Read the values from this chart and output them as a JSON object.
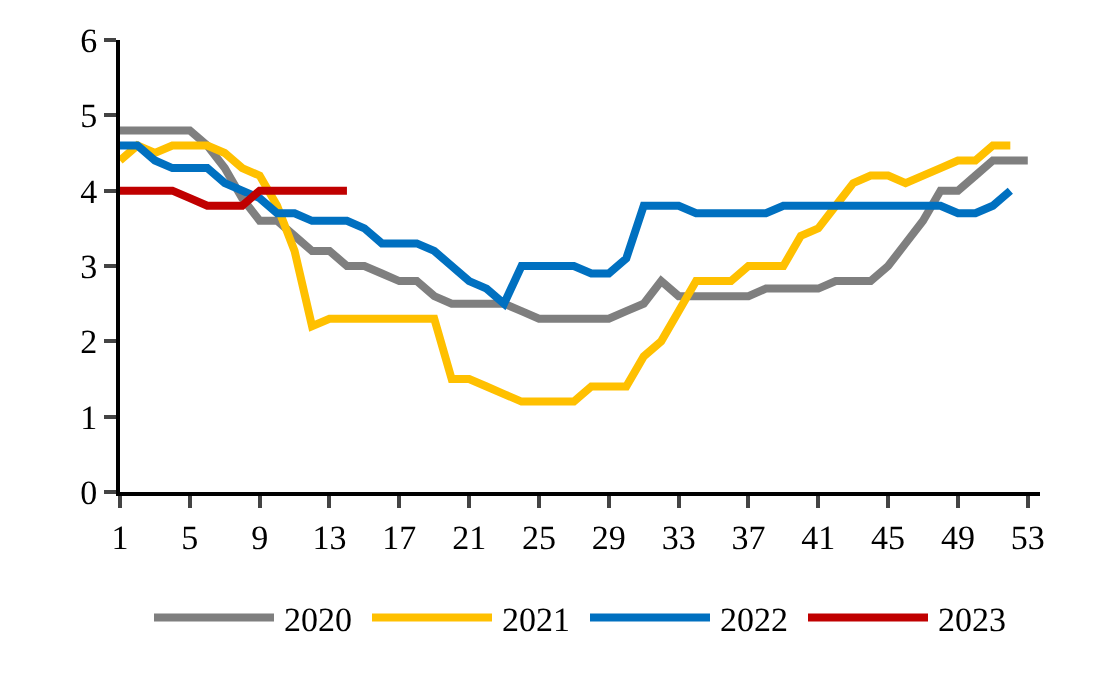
{
  "chart_data": {
    "type": "line",
    "x": [
      1,
      2,
      3,
      4,
      5,
      6,
      7,
      8,
      9,
      10,
      11,
      12,
      13,
      14,
      15,
      16,
      17,
      18,
      19,
      20,
      21,
      22,
      23,
      24,
      25,
      26,
      27,
      28,
      29,
      30,
      31,
      32,
      33,
      34,
      35,
      36,
      37,
      38,
      39,
      40,
      41,
      42,
      43,
      44,
      45,
      46,
      47,
      48,
      49,
      50,
      51,
      52,
      53
    ],
    "series": [
      {
        "name": "2020",
        "color": "#7f7f7f",
        "values": [
          4.8,
          4.8,
          4.8,
          4.8,
          4.8,
          4.6,
          4.3,
          3.9,
          3.6,
          3.6,
          3.4,
          3.2,
          3.2,
          3.0,
          3.0,
          2.9,
          2.8,
          2.8,
          2.6,
          2.5,
          2.5,
          2.5,
          2.5,
          2.4,
          2.3,
          2.3,
          2.3,
          2.3,
          2.3,
          2.4,
          2.5,
          2.8,
          2.6,
          2.6,
          2.6,
          2.6,
          2.6,
          2.7,
          2.7,
          2.7,
          2.7,
          2.8,
          2.8,
          2.8,
          3.0,
          3.3,
          3.6,
          4.0,
          4.0,
          4.2,
          4.4,
          4.4,
          4.4
        ]
      },
      {
        "name": "2021",
        "color": "#ffc000",
        "values": [
          4.4,
          4.6,
          4.5,
          4.6,
          4.6,
          4.6,
          4.5,
          4.3,
          4.2,
          3.8,
          3.2,
          2.2,
          2.3,
          2.3,
          2.3,
          2.3,
          2.3,
          2.3,
          2.3,
          1.5,
          1.5,
          1.4,
          1.3,
          1.2,
          1.2,
          1.2,
          1.2,
          1.4,
          1.4,
          1.4,
          1.8,
          2.0,
          2.4,
          2.8,
          2.8,
          2.8,
          3.0,
          3.0,
          3.0,
          3.4,
          3.5,
          3.8,
          4.1,
          4.2,
          4.2,
          4.1,
          4.2,
          4.3,
          4.4,
          4.4,
          4.6,
          4.6,
          null
        ]
      },
      {
        "name": "2022",
        "color": "#0070c0",
        "values": [
          4.6,
          4.6,
          4.4,
          4.3,
          4.3,
          4.3,
          4.1,
          4.0,
          3.9,
          3.7,
          3.7,
          3.6,
          3.6,
          3.6,
          3.5,
          3.3,
          3.3,
          3.3,
          3.2,
          3.0,
          2.8,
          2.7,
          2.5,
          3.0,
          3.0,
          3.0,
          3.0,
          2.9,
          2.9,
          3.1,
          3.8,
          3.8,
          3.8,
          3.7,
          3.7,
          3.7,
          3.7,
          3.7,
          3.8,
          3.8,
          3.8,
          3.8,
          3.8,
          3.8,
          3.8,
          3.8,
          3.8,
          3.8,
          3.7,
          3.7,
          3.8,
          4.0,
          null
        ]
      },
      {
        "name": "2023",
        "color": "#c00000",
        "values": [
          4.0,
          4.0,
          4.0,
          4.0,
          3.9,
          3.8,
          3.8,
          3.8,
          4.0,
          4.0,
          4.0,
          4.0,
          4.0,
          4.0,
          null,
          null,
          null,
          null,
          null,
          null,
          null,
          null,
          null,
          null,
          null,
          null,
          null,
          null,
          null,
          null,
          null,
          null,
          null,
          null,
          null,
          null,
          null,
          null,
          null,
          null,
          null,
          null,
          null,
          null,
          null,
          null,
          null,
          null,
          null,
          null,
          null,
          null,
          null
        ]
      }
    ],
    "xlim": [
      1,
      53.7
    ],
    "xticks": [
      1,
      5,
      9,
      13,
      17,
      21,
      25,
      29,
      33,
      37,
      41,
      45,
      49,
      53
    ],
    "ylim": [
      0,
      6
    ],
    "yticks": [
      0,
      1,
      2,
      3,
      4,
      5,
      6
    ],
    "grid": false,
    "legend": "bottom",
    "marker": "none",
    "line_style": "solid"
  }
}
